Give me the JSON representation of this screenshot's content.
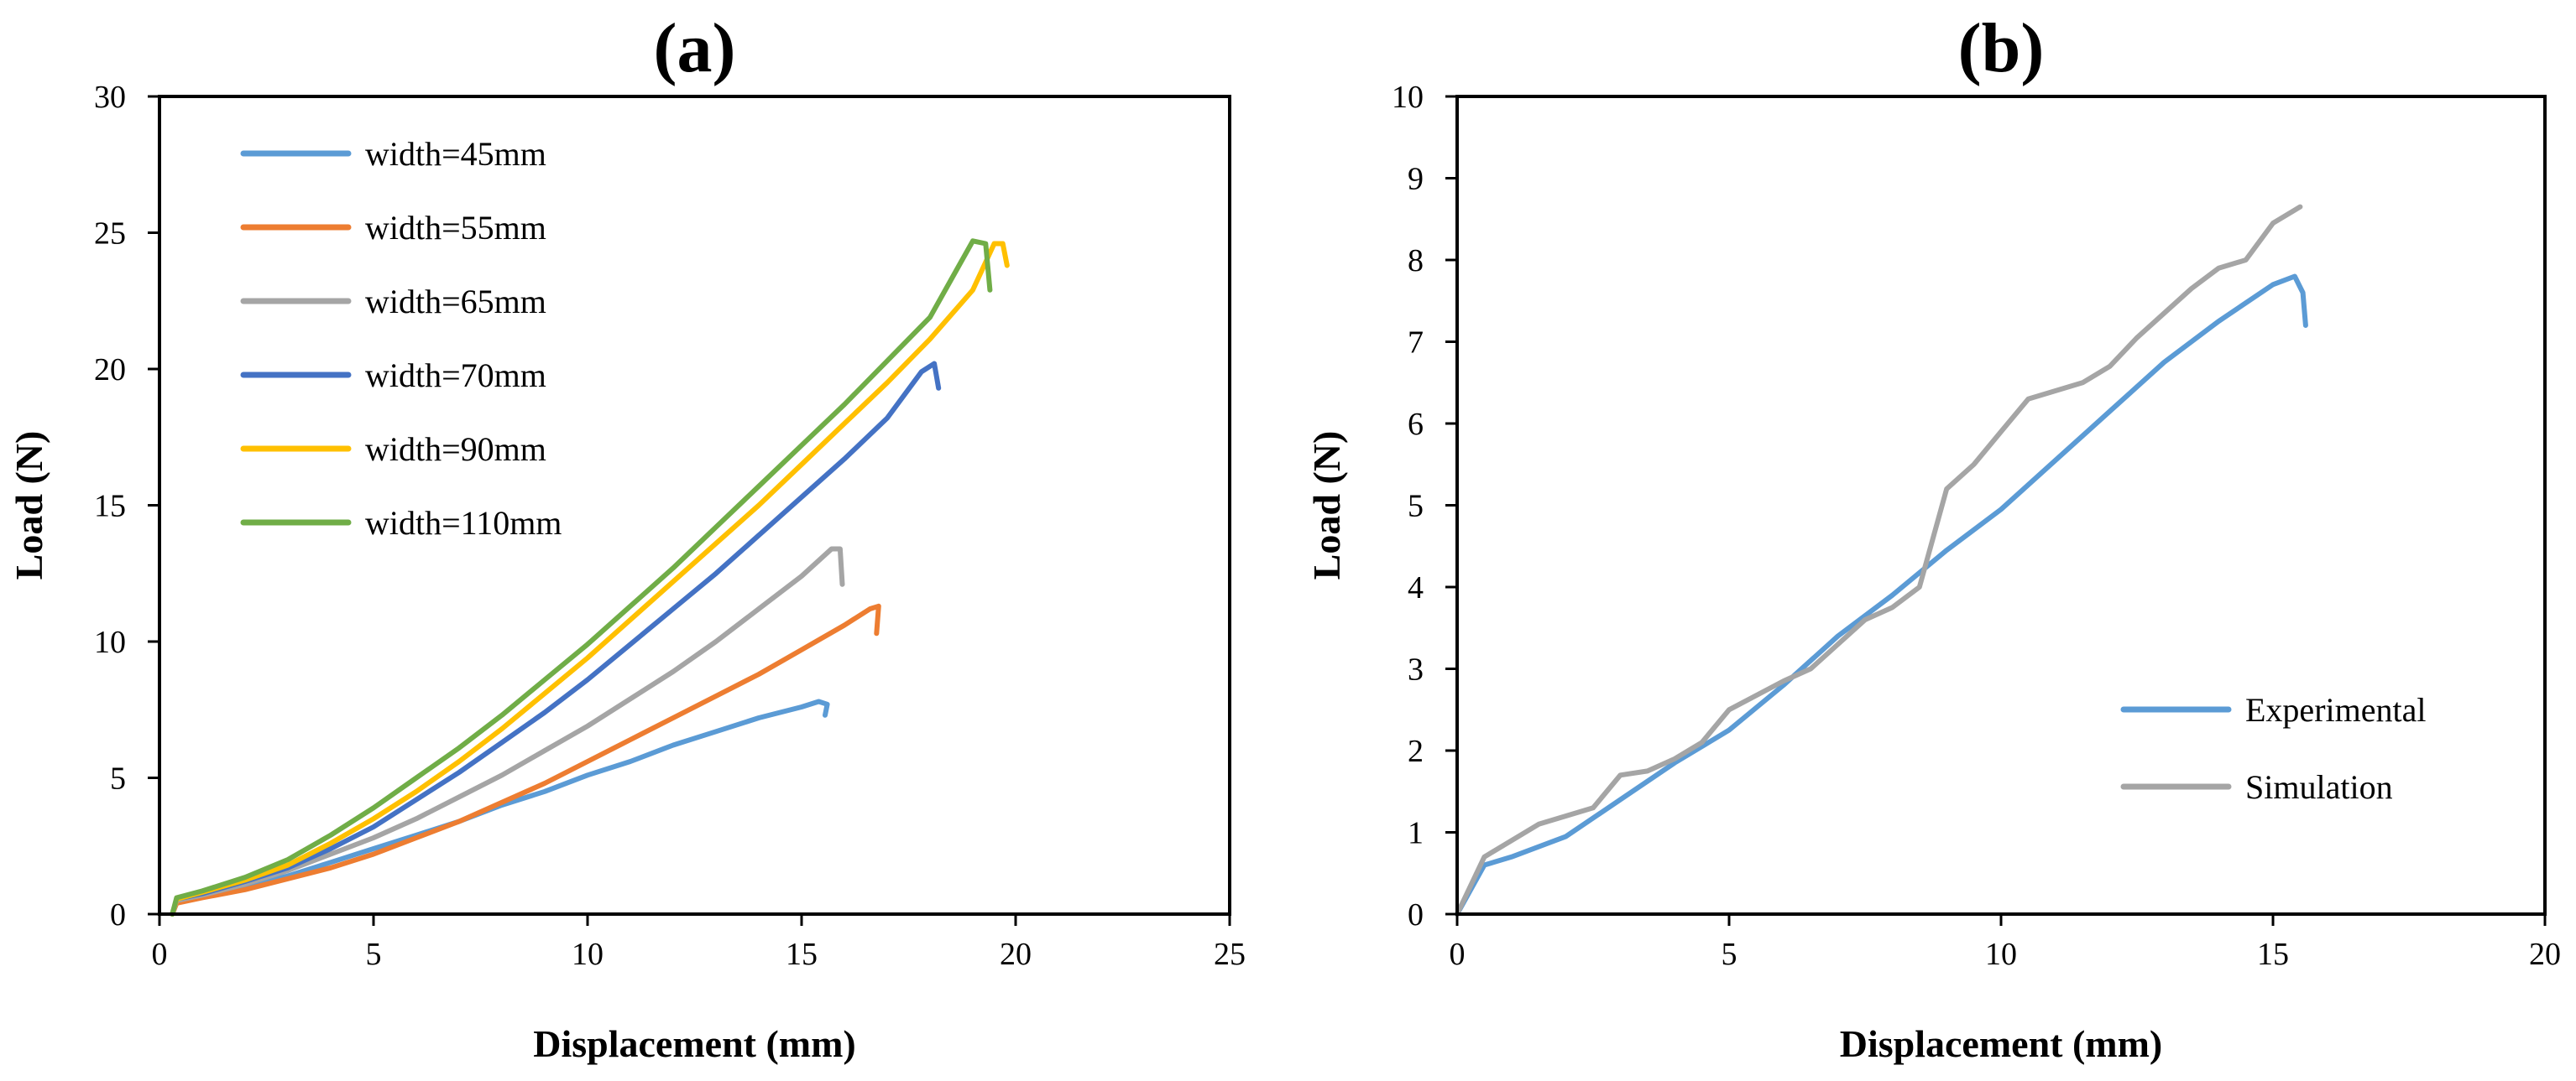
{
  "chart_data": [
    {
      "panel": "(a)",
      "type": "line",
      "xlabel": "Displacement (mm)",
      "ylabel": "Load (N)",
      "xlim": [
        0,
        25
      ],
      "ylim": [
        0,
        30
      ],
      "xticks": [
        0,
        5,
        10,
        15,
        20,
        25
      ],
      "yticks": [
        0,
        5,
        10,
        15,
        20,
        25,
        30
      ],
      "grid": false,
      "legend_position": "top-left",
      "series": [
        {
          "name": "width=45mm",
          "color": "#5b9bd5",
          "x": [
            0.3,
            0.4,
            1,
            2,
            3,
            4,
            5,
            6,
            7,
            8,
            9,
            10,
            11,
            12,
            13,
            14,
            15,
            15.4,
            15.6,
            15.55
          ],
          "y": [
            0,
            0.45,
            0.7,
            1.0,
            1.4,
            1.9,
            2.4,
            2.9,
            3.4,
            4.0,
            4.5,
            5.1,
            5.6,
            6.2,
            6.7,
            7.2,
            7.6,
            7.8,
            7.7,
            7.3
          ]
        },
        {
          "name": "width=55mm",
          "color": "#ed7d31",
          "x": [
            0.3,
            0.4,
            1,
            2,
            3,
            4,
            5,
            6,
            7,
            8,
            9,
            10,
            11,
            12,
            13,
            14,
            15,
            16,
            16.6,
            16.8,
            16.75
          ],
          "y": [
            0,
            0.4,
            0.6,
            0.9,
            1.3,
            1.7,
            2.2,
            2.8,
            3.4,
            4.1,
            4.8,
            5.6,
            6.4,
            7.2,
            8.0,
            8.8,
            9.7,
            10.6,
            11.2,
            11.3,
            10.3
          ]
        },
        {
          "name": "width=65mm",
          "color": "#a5a5a5",
          "x": [
            0.3,
            0.4,
            1,
            2,
            3,
            4,
            5,
            6,
            7,
            8,
            9,
            10,
            11,
            12,
            13,
            14,
            15,
            15.7,
            15.9,
            15.95
          ],
          "y": [
            0,
            0.5,
            0.7,
            1.1,
            1.6,
            2.2,
            2.8,
            3.5,
            4.3,
            5.1,
            6.0,
            6.9,
            7.9,
            8.9,
            10.0,
            11.2,
            12.4,
            13.4,
            13.4,
            12.1
          ]
        },
        {
          "name": "width=70mm",
          "color": "#4472c4",
          "x": [
            0.3,
            0.4,
            1,
            2,
            3,
            4,
            5,
            6,
            7,
            8,
            9,
            10,
            11,
            12,
            13,
            14,
            15,
            16,
            17,
            17.8,
            18.1,
            18.2
          ],
          "y": [
            0,
            0.55,
            0.75,
            1.2,
            1.7,
            2.4,
            3.2,
            4.2,
            5.2,
            6.3,
            7.4,
            8.6,
            9.9,
            11.2,
            12.5,
            13.9,
            15.3,
            16.7,
            18.2,
            19.9,
            20.2,
            19.3
          ]
        },
        {
          "name": "width=90mm",
          "color": "#ffc000",
          "x": [
            0.3,
            0.4,
            1,
            2,
            3,
            4,
            5,
            6,
            7,
            8,
            9,
            10,
            11,
            12,
            13,
            14,
            15,
            16,
            17,
            18,
            19,
            19.5,
            19.7,
            19.8
          ],
          "y": [
            0,
            0.55,
            0.8,
            1.25,
            1.8,
            2.6,
            3.5,
            4.5,
            5.6,
            6.8,
            8.1,
            9.4,
            10.8,
            12.2,
            13.6,
            15.0,
            16.5,
            18.0,
            19.5,
            21.1,
            22.9,
            24.6,
            24.6,
            23.8
          ]
        },
        {
          "name": "width=110mm",
          "color": "#70ad47",
          "x": [
            0.3,
            0.4,
            1,
            2,
            3,
            4,
            5,
            6,
            7,
            8,
            9,
            10,
            11,
            12,
            13,
            14,
            15,
            16,
            17,
            18,
            19,
            19.3,
            19.4
          ],
          "y": [
            0,
            0.6,
            0.85,
            1.35,
            2.0,
            2.9,
            3.9,
            5.0,
            6.1,
            7.3,
            8.6,
            9.9,
            11.3,
            12.7,
            14.2,
            15.7,
            17.2,
            18.7,
            20.3,
            21.9,
            24.7,
            24.6,
            22.9
          ]
        }
      ]
    },
    {
      "panel": "(b)",
      "type": "line",
      "xlabel": "Displacement (mm)",
      "ylabel": "Load (N)",
      "xlim": [
        0,
        20
      ],
      "ylim": [
        0,
        10
      ],
      "xticks": [
        0,
        5,
        10,
        15,
        20
      ],
      "yticks": [
        0,
        1,
        2,
        3,
        4,
        5,
        6,
        7,
        8,
        9,
        10
      ],
      "grid": false,
      "legend_position": "bottom-right",
      "series": [
        {
          "name": "Experimental",
          "color": "#5b9bd5",
          "x": [
            0,
            0.5,
            1,
            2,
            3,
            4,
            5,
            6,
            7,
            8,
            9,
            10,
            11,
            12,
            13,
            14,
            15,
            15.4,
            15.55,
            15.6
          ],
          "y": [
            0,
            0.6,
            0.7,
            0.95,
            1.4,
            1.85,
            2.25,
            2.8,
            3.4,
            3.9,
            4.45,
            4.95,
            5.55,
            6.15,
            6.75,
            7.25,
            7.7,
            7.8,
            7.6,
            7.2
          ]
        },
        {
          "name": "Simulation",
          "color": "#a5a5a5",
          "x": [
            0,
            0.5,
            1.5,
            2.5,
            3,
            3.5,
            4,
            4.5,
            5,
            6,
            6.5,
            7,
            7.5,
            8,
            8.5,
            9,
            9.5,
            10,
            10.5,
            11.5,
            12,
            12.5,
            13,
            13.5,
            14,
            14.5,
            15,
            15.5
          ],
          "y": [
            0,
            0.7,
            1.1,
            1.3,
            1.7,
            1.75,
            1.9,
            2.1,
            2.5,
            2.85,
            3.0,
            3.3,
            3.6,
            3.75,
            4.0,
            5.2,
            5.5,
            5.9,
            6.3,
            6.5,
            6.7,
            7.05,
            7.35,
            7.65,
            7.9,
            8.0,
            8.45,
            8.65
          ]
        }
      ]
    }
  ]
}
